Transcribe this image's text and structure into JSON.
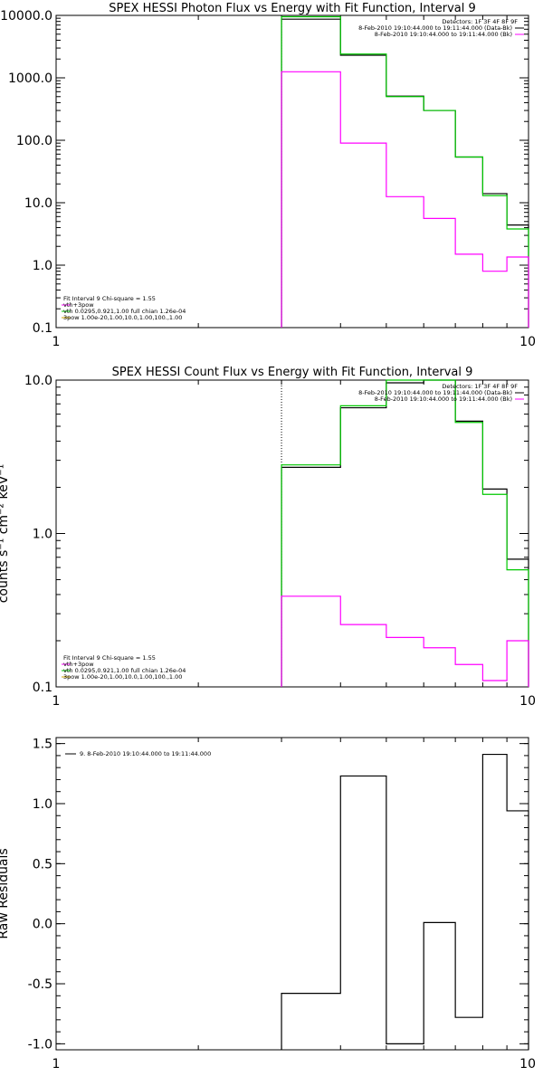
{
  "colors": {
    "background": "#ffffff",
    "axis": "#000000",
    "data": "#000000",
    "model": "#00c800",
    "background_model": "#ff00ff"
  },
  "chart_data": [
    {
      "type": "line",
      "title": "SPEX HESSI Photon Flux vs Energy with Fit Function, Interval 9",
      "xlabel": "",
      "ylabel": "",
      "xscale": "log",
      "yscale": "log",
      "xlim": [
        1,
        10
      ],
      "ylim": [
        0.1,
        10000
      ],
      "xtick_labels": [
        "1",
        "10"
      ],
      "ytick_labels": [
        "0.1",
        "1.0",
        "10.0",
        "100.0",
        "1000.0",
        "10000.0"
      ],
      "cutoff_x": 3,
      "legend_top": [
        "Detectors: 1F 3F 4F 8F 9F",
        "8-Feb-2010 19:10:44.000 to 19:11:44.000 (Data-Bk)",
        "8-Feb-2010 19:10:44.000 to 19:11:44.000 (Bk)"
      ],
      "legend_bottom": [
        "Fit Interval 9   Chi-square = 1.55",
        "vth+3pow",
        "vth 0.0295,0.921,1.00  full chian 1.26e-04",
        "3pow 1.00e-20,1.00,10.0,1.00,100.,1.00"
      ],
      "edges": [
        3,
        4,
        5,
        6,
        7,
        8,
        9,
        10
      ],
      "series": [
        {
          "name": "8-Feb-2010 19:10:44.000 to 19:11:44.000 (Data-Bk)",
          "values": [
            8700,
            2300,
            510,
            300,
            54,
            14,
            4.4
          ]
        },
        {
          "name": "vth+3pow",
          "values": [
            9500,
            2400,
            500,
            300,
            54,
            13,
            3.8
          ]
        },
        {
          "name": "8-Feb-2010 19:10:44.000 to 19:11:44.000 (Bk)",
          "values": [
            1250,
            90,
            12.5,
            5.6,
            1.5,
            0.8,
            1.35
          ]
        }
      ]
    },
    {
      "type": "line",
      "title": "SPEX HESSI Count Flux vs Energy with Fit Function, Interval 9",
      "xlabel": "",
      "ylabel": "counts s⁻¹ cm⁻² keV⁻¹",
      "xscale": "log",
      "yscale": "log",
      "xlim": [
        1,
        10
      ],
      "ylim": [
        0.1,
        10
      ],
      "xtick_labels": [
        "1",
        "10"
      ],
      "ytick_labels": [
        "0.1",
        "1.0",
        "10.0"
      ],
      "cutoff_x": 3,
      "legend_top": [
        "Detectors: 1F 3F 4F 8F 9F",
        "8-Feb-2010 19:10:44.000 to 19:11:44.000 (Data-Bk)",
        "8-Feb-2010 19:10:44.000 to 19:11:44.000 (Bk)"
      ],
      "legend_bottom": [
        "Fit Interval 9   Chi-square = 1.55",
        "vth+3pow",
        "vth 0.0295,0.921,1.00  full chian 1.26e-04",
        "3pow 1.00e-20,1.00,10.0,1.00,100.,1.00"
      ],
      "edges": [
        3,
        4,
        5,
        6,
        7,
        8,
        9,
        10
      ],
      "series": [
        {
          "name": "8-Feb-2010 19:10:44.000 to 19:11:44.000 (Data-Bk)",
          "values": [
            2.7,
            6.6,
            9.6,
            10.0,
            5.4,
            1.95,
            0.68
          ]
        },
        {
          "name": "vth+3pow",
          "values": [
            2.8,
            6.8,
            10.0,
            10.0,
            5.3,
            1.8,
            0.58
          ]
        },
        {
          "name": "8-Feb-2010 19:10:44.000 to 19:11:44.000 (Bk)",
          "values": [
            0.39,
            0.255,
            0.21,
            0.18,
            0.14,
            0.11,
            0.2
          ]
        }
      ]
    },
    {
      "type": "line",
      "title": "",
      "xlabel": "",
      "ylabel": "Raw Residuals",
      "xscale": "log",
      "yscale": "linear",
      "xlim": [
        1,
        10
      ],
      "ylim": [
        -1.05,
        1.55
      ],
      "xtick_labels": [
        "1",
        "10"
      ],
      "yticks": [
        -1.0,
        -0.5,
        0.0,
        0.5,
        1.0,
        1.5
      ],
      "ytick_labels": [
        "-1.0",
        "-0.5",
        "0.0",
        "0.5",
        "1.0",
        "1.5"
      ],
      "legend_top": [
        "9.  8-Feb-2010 19:10:44.000 to 19:11:44.000"
      ],
      "edges": [
        3,
        4,
        5,
        6,
        7,
        8,
        9,
        10
      ],
      "series": [
        {
          "name": "9.  8-Feb-2010 19:10:44.000 to 19:11:44.000",
          "values": [
            -0.58,
            1.23,
            -1.0,
            0.01,
            -0.78,
            1.41,
            0.94
          ]
        }
      ]
    }
  ]
}
